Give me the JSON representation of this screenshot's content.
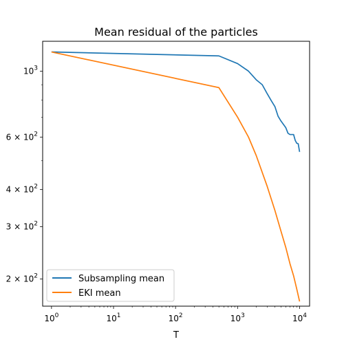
{
  "chart_data": {
    "type": "line",
    "title": "Mean residual of the particles",
    "xlabel": "T",
    "ylabel": "",
    "xscale": "log",
    "yscale": "log",
    "xlim": [
      0.72,
      14500
    ],
    "ylim": [
      162,
      1260
    ],
    "x_ticks": [
      {
        "value": 1,
        "base": "10",
        "exp": "0"
      },
      {
        "value": 10,
        "base": "10",
        "exp": "1"
      },
      {
        "value": 100,
        "base": "10",
        "exp": "2"
      },
      {
        "value": 1000,
        "base": "10",
        "exp": "3"
      },
      {
        "value": 10000,
        "base": "10",
        "exp": "4"
      }
    ],
    "y_ticks": [
      {
        "value": 200,
        "label": "2 × 10",
        "exp": "2"
      },
      {
        "value": 300,
        "label": "3 × 10",
        "exp": "2"
      },
      {
        "value": 400,
        "label": "4 × 10",
        "exp": "2"
      },
      {
        "value": 600,
        "label": "6 × 10",
        "exp": "2"
      },
      {
        "value": 1000,
        "label": "10",
        "exp": "3"
      }
    ],
    "series": [
      {
        "name": "Subsampling mean",
        "color": "#1f77b4",
        "points": [
          [
            1,
            1160
          ],
          [
            500,
            1125
          ],
          [
            1000,
            1060
          ],
          [
            1500,
            1000
          ],
          [
            2000,
            935
          ],
          [
            2500,
            900
          ],
          [
            3000,
            840
          ],
          [
            3500,
            795
          ],
          [
            4000,
            760
          ],
          [
            4500,
            705
          ],
          [
            5000,
            680
          ],
          [
            6000,
            645
          ],
          [
            6500,
            618
          ],
          [
            7000,
            612
          ],
          [
            8000,
            612
          ],
          [
            8500,
            585
          ],
          [
            9000,
            572
          ],
          [
            9500,
            570
          ],
          [
            10000,
            535
          ]
        ]
      },
      {
        "name": "EKI mean",
        "color": "#ff7f0e",
        "points": [
          [
            1,
            1160
          ],
          [
            500,
            880
          ],
          [
            1000,
            700
          ],
          [
            1500,
            600
          ],
          [
            2000,
            520
          ],
          [
            3000,
            410
          ],
          [
            4000,
            340
          ],
          [
            5000,
            290
          ],
          [
            6000,
            255
          ],
          [
            7000,
            225
          ],
          [
            8000,
            205
          ],
          [
            9000,
            185
          ],
          [
            10000,
            168
          ]
        ]
      }
    ],
    "grid": false,
    "legend": "lower-left"
  }
}
